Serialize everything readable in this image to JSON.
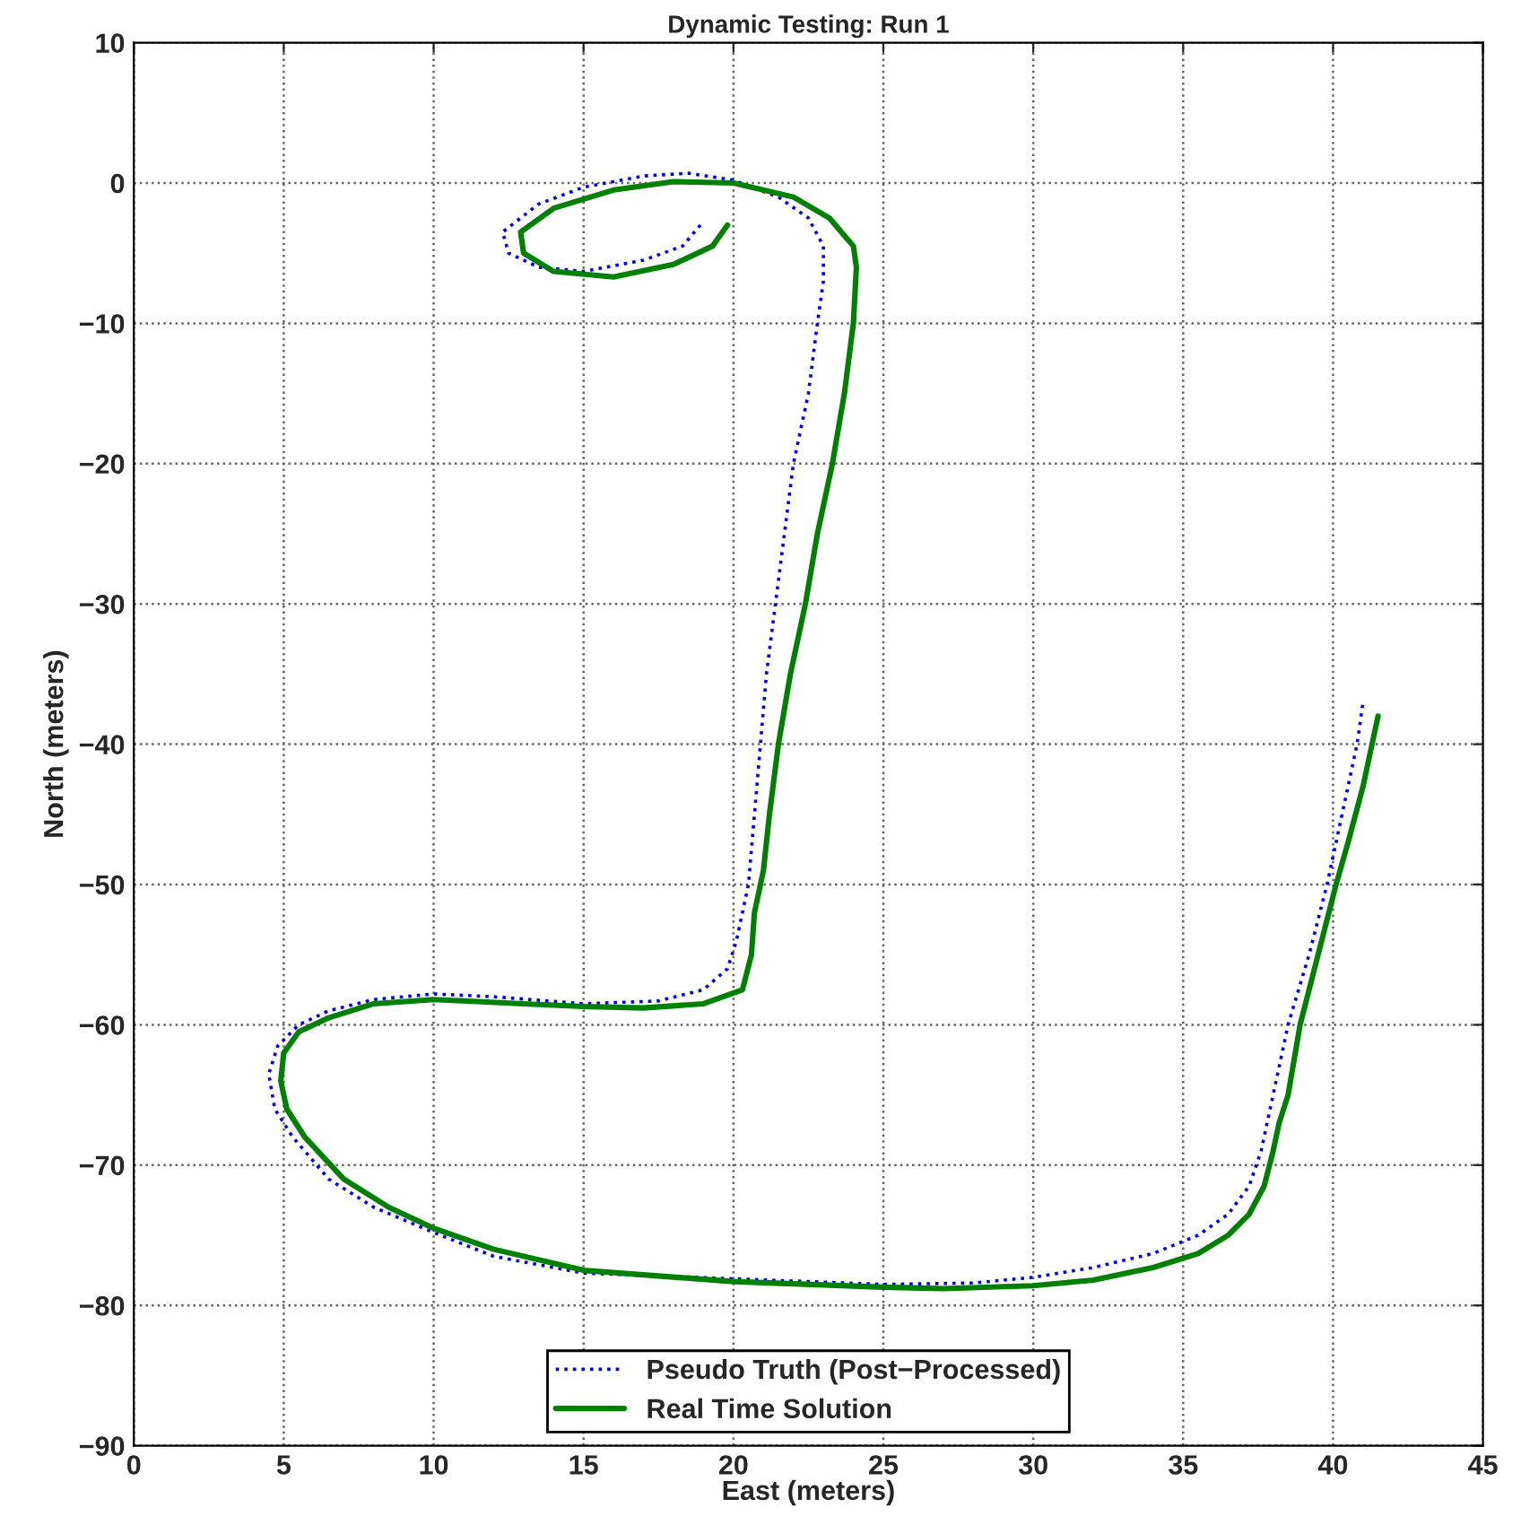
{
  "chart_data": {
    "type": "line",
    "title": "Dynamic Testing: Run 1",
    "xlabel": "East (meters)",
    "ylabel": "North (meters)",
    "xlim": [
      0,
      45
    ],
    "xticks": [
      0,
      5,
      10,
      15,
      20,
      25,
      30,
      35,
      40,
      45
    ],
    "ylim": [
      -90,
      10
    ],
    "yticks": [
      {
        "value": -90,
        "label": "−90"
      },
      {
        "value": -80,
        "label": "−80"
      },
      {
        "value": -70,
        "label": "−70"
      },
      {
        "value": -60,
        "label": "−60"
      },
      {
        "value": -50,
        "label": "−50"
      },
      {
        "value": -40,
        "label": "−40"
      },
      {
        "value": -30,
        "label": "−30"
      },
      {
        "value": -20,
        "label": "−20"
      },
      {
        "value": -10,
        "label": "−10"
      },
      0,
      10
    ],
    "grid": true,
    "legend": "bottom",
    "marker": "none",
    "series": [
      {
        "name": "Pseudo Truth (Post−Processed)",
        "color": "#0000ff",
        "line_style": "dotted",
        "x": [
          18.9,
          18.3,
          17,
          15,
          13.5,
          12.5,
          12.3,
          13.5,
          15,
          17,
          18.5,
          20,
          21.5,
          22.5,
          23,
          23,
          22.8,
          22.5,
          22,
          21.7,
          21.4,
          21.1,
          20.9,
          20.7,
          20.5,
          20.1,
          19.8,
          19,
          17.5,
          15,
          12,
          10,
          8,
          6.5,
          5.5,
          4.8,
          4.5,
          4.7,
          5.3,
          6.5,
          8,
          10,
          12,
          15,
          20,
          25,
          28,
          30,
          32,
          34,
          35.5,
          36.5,
          37.2,
          37.6,
          38,
          38.5,
          39.2,
          39.8,
          40.3,
          40.8,
          41
        ],
        "values": [
          -3,
          -4.5,
          -5.5,
          -6.3,
          -6,
          -5,
          -3.5,
          -1.5,
          -0.3,
          0.5,
          0.7,
          0.2,
          -1,
          -2.5,
          -4.5,
          -7,
          -10,
          -15,
          -20,
          -25,
          -30,
          -35,
          -40,
          -45,
          -50,
          -54,
          -56,
          -57.5,
          -58.3,
          -58.5,
          -58,
          -57.8,
          -58.2,
          -59,
          -60,
          -61.5,
          -63.5,
          -66,
          -68,
          -71,
          -73,
          -74.8,
          -76.5,
          -77.7,
          -78.1,
          -78.5,
          -78.4,
          -78,
          -77.3,
          -76.3,
          -75,
          -73.5,
          -71.5,
          -69,
          -65,
          -60,
          -55,
          -50,
          -45,
          -40,
          -37
        ]
      },
      {
        "name": "Real Time Solution",
        "color": "#008000",
        "line_style": "solid",
        "x": [
          19.8,
          19.3,
          18,
          16,
          14,
          13,
          12.9,
          14,
          16,
          18,
          20,
          22,
          23.2,
          24,
          24.1,
          24,
          23.7,
          23.3,
          22.8,
          22.4,
          21.9,
          21.5,
          21.2,
          21,
          20.7,
          20.6,
          20.3,
          19,
          17,
          15,
          13,
          11,
          10,
          8,
          6.5,
          5.5,
          5,
          4.9,
          5.1,
          5.7,
          7,
          8.5,
          10,
          12,
          15,
          20,
          25,
          27,
          30,
          32,
          34,
          35.5,
          36.5,
          37.2,
          37.7,
          38,
          38.2,
          38.5,
          38.9,
          39.5,
          40.1,
          40.5,
          41,
          41.5
        ],
        "values": [
          -3,
          -4.5,
          -5.8,
          -6.7,
          -6.3,
          -5,
          -3.5,
          -1.8,
          -0.5,
          0.1,
          0,
          -1,
          -2.5,
          -4.5,
          -6,
          -10,
          -15,
          -20,
          -25,
          -30,
          -35,
          -40,
          -45,
          -49,
          -52,
          -55,
          -57.5,
          -58.5,
          -58.8,
          -58.7,
          -58.5,
          -58.3,
          -58.2,
          -58.5,
          -59.5,
          -60.5,
          -62,
          -64,
          -66,
          -68,
          -71,
          -73,
          -74.5,
          -76,
          -77.5,
          -78.3,
          -78.7,
          -78.8,
          -78.6,
          -78.2,
          -77.3,
          -76.3,
          -75,
          -73.5,
          -71.5,
          -69,
          -67,
          -65,
          -60,
          -55,
          -50,
          -47,
          -43,
          -38
        ]
      }
    ]
  }
}
